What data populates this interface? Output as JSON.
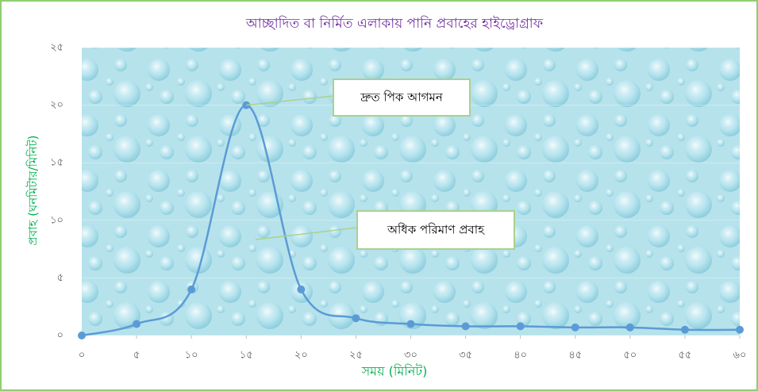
{
  "chart_data": {
    "type": "line",
    "title": "আচ্ছাদিত বা নির্মিত এলাকায় পানি প্রবাহের হাইড্রোগ্রাফ",
    "x_label": "সময় (মিনিট)",
    "y_label": "প্রবাহ (ঘনমিটার/মিনিট)",
    "x": [
      0,
      5,
      10,
      15,
      20,
      25,
      30,
      35,
      40,
      45,
      50,
      55,
      60
    ],
    "series": [
      {
        "color": "#5b9bd5",
        "values": [
          0,
          1,
          4,
          20,
          4,
          1.5,
          1,
          0.8,
          0.8,
          0.7,
          0.7,
          0.5,
          0.5
        ]
      }
    ],
    "xlim": [
      0,
      60
    ],
    "xticks": [
      {
        "value": 0,
        "label": "০"
      },
      {
        "value": 5,
        "label": "৫"
      },
      {
        "value": 10,
        "label": "১০"
      },
      {
        "value": 15,
        "label": "১৫"
      },
      {
        "value": 20,
        "label": "২০"
      },
      {
        "value": 25,
        "label": "২৫"
      },
      {
        "value": 30,
        "label": "৩০"
      },
      {
        "value": 35,
        "label": "৩৫"
      },
      {
        "value": 40,
        "label": "৪০"
      },
      {
        "value": 45,
        "label": "৪৫"
      },
      {
        "value": 50,
        "label": "৫০"
      },
      {
        "value": 55,
        "label": "৫৫"
      },
      {
        "value": 60,
        "label": "৬০"
      }
    ],
    "ylim": [
      0,
      25
    ],
    "yticks": [
      {
        "value": 0,
        "label": "০"
      },
      {
        "value": 5,
        "label": "৫"
      },
      {
        "value": 10,
        "label": "১০"
      },
      {
        "value": 15,
        "label": "১৫"
      },
      {
        "value": 20,
        "label": "২০"
      },
      {
        "value": 25,
        "label": "২৫"
      }
    ],
    "annotations": [
      "দ্রুত পিক আগমন",
      "অধিক পরিমাণ প্রবাহ"
    ]
  }
}
